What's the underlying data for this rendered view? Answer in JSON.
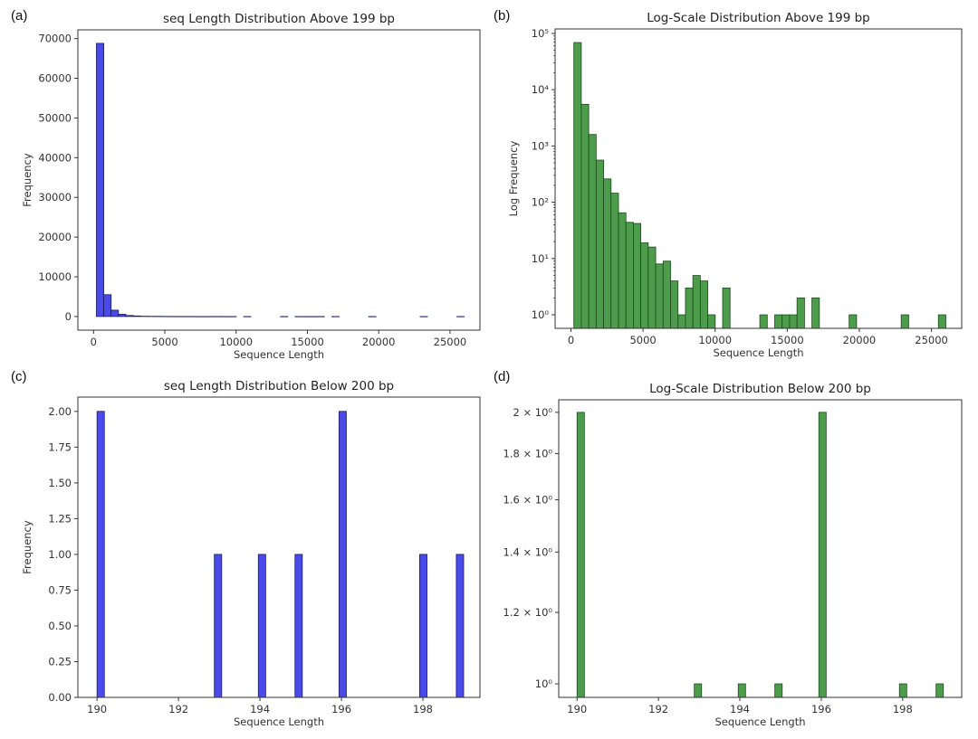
{
  "chart_data": [
    {
      "panel": "(a)",
      "type": "bar",
      "title": "seq Length Distribution Above 199 bp",
      "xlabel": "Sequence Length",
      "ylabel": "Frequency",
      "yscale": "linear",
      "xlim": [
        -1100,
        27100
      ],
      "ylim": [
        -3440,
        72200
      ],
      "xticks": [
        0,
        5000,
        10000,
        15000,
        20000,
        25000
      ],
      "xtick_labels": [
        "0",
        "5000",
        "10000",
        "15000",
        "20000",
        "25000"
      ],
      "yticks": [
        0,
        10000,
        20000,
        30000,
        40000,
        50000,
        60000,
        70000
      ],
      "ytick_labels": [
        "0",
        "10000",
        "20000",
        "30000",
        "40000",
        "50000",
        "60000",
        "70000"
      ],
      "bin_start": 200,
      "bin_width": 516,
      "counts": [
        68800,
        5500,
        1600,
        560,
        260,
        145,
        65,
        44,
        42,
        19,
        16,
        8,
        9,
        4,
        1,
        3,
        5,
        4,
        1,
        0,
        3,
        0,
        0,
        0,
        0,
        1,
        0,
        1,
        1,
        1,
        2,
        0,
        2,
        0,
        0,
        0,
        0,
        1,
        0,
        0,
        0,
        0,
        0,
        0,
        1,
        0,
        0,
        0,
        0,
        1
      ],
      "color": "#4a4ae8",
      "edge": "#1a1a6a",
      "grid": false
    },
    {
      "panel": "(b)",
      "type": "bar",
      "title": "Log-Scale Distribution Above 199 bp",
      "xlabel": "Sequence Length",
      "ylabel": "Log Frequency",
      "yscale": "log",
      "xlim": [
        -1100,
        27100
      ],
      "ylim": [
        0.575,
        120000
      ],
      "xticks": [
        0,
        5000,
        10000,
        15000,
        20000,
        25000
      ],
      "xtick_labels": [
        "0",
        "5000",
        "10000",
        "15000",
        "20000",
        "25000"
      ],
      "yticks": [
        1,
        10,
        100,
        1000,
        10000,
        100000
      ],
      "ytick_labels": [
        "10⁰",
        "10¹",
        "10²",
        "10³",
        "10⁴",
        "10⁵"
      ],
      "bin_start": 200,
      "bin_width": 516,
      "counts": [
        68800,
        5500,
        1600,
        560,
        260,
        145,
        65,
        44,
        42,
        19,
        16,
        8,
        9,
        4,
        1,
        3,
        5,
        4,
        1,
        0,
        3,
        0,
        0,
        0,
        0,
        1,
        0,
        1,
        1,
        1,
        2,
        0,
        2,
        0,
        0,
        0,
        0,
        1,
        0,
        0,
        0,
        0,
        0,
        0,
        1,
        0,
        0,
        0,
        0,
        1
      ],
      "color": "#4c9c4c",
      "edge": "#1b4a1b",
      "grid": false
    },
    {
      "panel": "(c)",
      "type": "bar",
      "title": "seq Length Distribution Below 200 bp",
      "xlabel": "Sequence Length",
      "ylabel": "Frequency",
      "yscale": "linear",
      "xlim": [
        189.53,
        199.4
      ],
      "ylim": [
        0,
        2.1
      ],
      "xticks": [
        190,
        192,
        194,
        196,
        198
      ],
      "xtick_labels": [
        "190",
        "192",
        "194",
        "196",
        "198"
      ],
      "yticks": [
        0,
        0.25,
        0.5,
        0.75,
        1,
        1.25,
        1.5,
        1.75,
        2
      ],
      "ytick_labels": [
        "0.00",
        "0.25",
        "0.50",
        "0.75",
        "1.00",
        "1.25",
        "1.50",
        "1.75",
        "2.00"
      ],
      "bin_start": 190,
      "bin_width": 0.18,
      "counts": [
        2,
        0,
        0,
        0,
        0,
        0,
        0,
        0,
        0,
        0,
        0,
        0,
        0,
        0,
        0,
        0,
        1,
        0,
        0,
        0,
        0,
        0,
        1,
        0,
        0,
        0,
        0,
        1,
        0,
        0,
        0,
        0,
        0,
        2,
        0,
        0,
        0,
        0,
        0,
        0,
        0,
        0,
        0,
        0,
        1,
        0,
        0,
        0,
        0,
        1
      ],
      "color": "#4a4ae8",
      "edge": "#1a1a6a",
      "grid": false
    },
    {
      "panel": "(d)",
      "type": "bar",
      "title": "Log-Scale Distribution Below 200 bp",
      "xlabel": "Sequence Length",
      "ylabel": "",
      "yscale": "log",
      "xlim": [
        189.55,
        199.45
      ],
      "ylim": [
        0.966,
        2.065
      ],
      "xticks": [
        190,
        192,
        194,
        196,
        198
      ],
      "xtick_labels": [
        "190",
        "192",
        "194",
        "196",
        "198"
      ],
      "yticks": [
        1,
        1.2,
        1.4,
        1.6,
        1.8,
        2
      ],
      "ytick_labels": [
        "10⁰",
        "1.2 × 10⁰",
        "1.4 × 10⁰",
        "1.6 × 10⁰",
        "1.8 × 10⁰",
        "2 × 10⁰"
      ],
      "bin_start": 190,
      "bin_width": 0.18,
      "counts": [
        2,
        0,
        0,
        0,
        0,
        0,
        0,
        0,
        0,
        0,
        0,
        0,
        0,
        0,
        0,
        0,
        1,
        0,
        0,
        0,
        0,
        0,
        1,
        0,
        0,
        0,
        0,
        1,
        0,
        0,
        0,
        0,
        0,
        2,
        0,
        0,
        0,
        0,
        0,
        0,
        0,
        0,
        0,
        0,
        1,
        0,
        0,
        0,
        0,
        1
      ],
      "color": "#4c9c4c",
      "edge": "#1b4a1b",
      "grid": false
    }
  ]
}
